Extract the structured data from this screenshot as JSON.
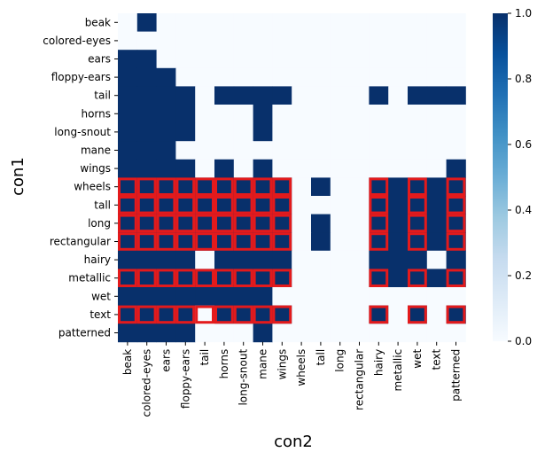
{
  "chart_data": {
    "type": "heatmap",
    "xlabel": "con2",
    "ylabel": "con1",
    "colormap": "Blues",
    "colors": {
      "low": "#f7fbff",
      "high": "#08306b",
      "highlight": "#e31a1c"
    },
    "rows": [
      "beak",
      "colored-eyes",
      "ears",
      "floppy-ears",
      "tail",
      "horns",
      "long-snout",
      "mane",
      "wings",
      "wheels",
      "tall",
      "long",
      "rectangular",
      "hairy",
      "metallic",
      "wet",
      "text",
      "patterned"
    ],
    "columns": [
      "beak",
      "colored-eyes",
      "ears",
      "floppy-ears",
      "tail",
      "horns",
      "long-snout",
      "mane",
      "wings",
      "wheels",
      "tall",
      "long",
      "rectangular",
      "hairy",
      "metallic",
      "wet",
      "text",
      "patterned"
    ],
    "values": [
      [
        0,
        1,
        0,
        0,
        0,
        0,
        0,
        0,
        0,
        0,
        0,
        0,
        0,
        0,
        0,
        0,
        0,
        0
      ],
      [
        0,
        0,
        0,
        0,
        0,
        0,
        0,
        0,
        0,
        0,
        0,
        0,
        0,
        0,
        0,
        0,
        0,
        0
      ],
      [
        1,
        1,
        0,
        0,
        0,
        0,
        0,
        0,
        0,
        0,
        0,
        0,
        0,
        0,
        0,
        0,
        0,
        0
      ],
      [
        1,
        1,
        1,
        0,
        0,
        0,
        0,
        0,
        0,
        0,
        0,
        0,
        0,
        0,
        0,
        0,
        0,
        0
      ],
      [
        1,
        1,
        1,
        1,
        0,
        1,
        1,
        1,
        1,
        0,
        0,
        0,
        0,
        1,
        0,
        1,
        1,
        1
      ],
      [
        1,
        1,
        1,
        1,
        0,
        0,
        0,
        1,
        0,
        0,
        0,
        0,
        0,
        0,
        0,
        0,
        0,
        0
      ],
      [
        1,
        1,
        1,
        1,
        0,
        0,
        0,
        1,
        0,
        0,
        0,
        0,
        0,
        0,
        0,
        0,
        0,
        0
      ],
      [
        1,
        1,
        1,
        0,
        0,
        0,
        0,
        0,
        0,
        0,
        0,
        0,
        0,
        0,
        0,
        0,
        0,
        0
      ],
      [
        1,
        1,
        1,
        1,
        0,
        1,
        0,
        1,
        0,
        0,
        0,
        0,
        0,
        0,
        0,
        0,
        0,
        1
      ],
      [
        1,
        1,
        1,
        1,
        1,
        1,
        1,
        1,
        1,
        0,
        1,
        0,
        0,
        1,
        1,
        1,
        1,
        1
      ],
      [
        1,
        1,
        1,
        1,
        1,
        1,
        1,
        1,
        1,
        0,
        0,
        0,
        0,
        1,
        1,
        1,
        1,
        1
      ],
      [
        1,
        1,
        1,
        1,
        1,
        1,
        1,
        1,
        1,
        0,
        1,
        0,
        0,
        1,
        1,
        1,
        1,
        1
      ],
      [
        1,
        1,
        1,
        1,
        1,
        1,
        1,
        1,
        1,
        0,
        1,
        0,
        0,
        1,
        1,
        1,
        1,
        1
      ],
      [
        1,
        1,
        1,
        1,
        0,
        1,
        1,
        1,
        1,
        0,
        0,
        0,
        0,
        1,
        1,
        1,
        0,
        1
      ],
      [
        1,
        1,
        1,
        1,
        1,
        1,
        1,
        1,
        1,
        0,
        0,
        0,
        0,
        1,
        1,
        1,
        1,
        1
      ],
      [
        1,
        1,
        1,
        1,
        1,
        1,
        1,
        1,
        0,
        0,
        0,
        0,
        0,
        0,
        0,
        0,
        0,
        0
      ],
      [
        1,
        1,
        1,
        1,
        0,
        1,
        1,
        1,
        1,
        0,
        0,
        0,
        0,
        1,
        0,
        1,
        0,
        1
      ],
      [
        1,
        1,
        1,
        1,
        0,
        0,
        0,
        1,
        0,
        0,
        0,
        0,
        0,
        0,
        0,
        0,
        0,
        0
      ]
    ],
    "highlighted_cells": [
      [
        9,
        0
      ],
      [
        9,
        1
      ],
      [
        9,
        2
      ],
      [
        9,
        3
      ],
      [
        9,
        4
      ],
      [
        9,
        5
      ],
      [
        9,
        6
      ],
      [
        9,
        7
      ],
      [
        9,
        8
      ],
      [
        9,
        13
      ],
      [
        9,
        15
      ],
      [
        9,
        17
      ],
      [
        10,
        0
      ],
      [
        10,
        1
      ],
      [
        10,
        2
      ],
      [
        10,
        3
      ],
      [
        10,
        4
      ],
      [
        10,
        5
      ],
      [
        10,
        6
      ],
      [
        10,
        7
      ],
      [
        10,
        8
      ],
      [
        10,
        13
      ],
      [
        10,
        15
      ],
      [
        10,
        17
      ],
      [
        11,
        0
      ],
      [
        11,
        1
      ],
      [
        11,
        2
      ],
      [
        11,
        3
      ],
      [
        11,
        4
      ],
      [
        11,
        5
      ],
      [
        11,
        6
      ],
      [
        11,
        7
      ],
      [
        11,
        8
      ],
      [
        11,
        13
      ],
      [
        11,
        15
      ],
      [
        11,
        17
      ],
      [
        12,
        0
      ],
      [
        12,
        1
      ],
      [
        12,
        2
      ],
      [
        12,
        3
      ],
      [
        12,
        4
      ],
      [
        12,
        5
      ],
      [
        12,
        6
      ],
      [
        12,
        7
      ],
      [
        12,
        8
      ],
      [
        12,
        13
      ],
      [
        12,
        15
      ],
      [
        12,
        17
      ],
      [
        14,
        0
      ],
      [
        14,
        1
      ],
      [
        14,
        2
      ],
      [
        14,
        3
      ],
      [
        14,
        4
      ],
      [
        14,
        5
      ],
      [
        14,
        6
      ],
      [
        14,
        7
      ],
      [
        14,
        8
      ],
      [
        14,
        13
      ],
      [
        14,
        15
      ],
      [
        14,
        17
      ],
      [
        16,
        0
      ],
      [
        16,
        1
      ],
      [
        16,
        2
      ],
      [
        16,
        3
      ],
      [
        16,
        4
      ],
      [
        16,
        5
      ],
      [
        16,
        6
      ],
      [
        16,
        7
      ],
      [
        16,
        8
      ],
      [
        16,
        13
      ],
      [
        16,
        15
      ],
      [
        16,
        17
      ]
    ],
    "colorbar": {
      "range": [
        0,
        1
      ],
      "ticks": [
        0.0,
        0.2,
        0.4,
        0.6,
        0.8,
        1.0
      ],
      "tick_labels": [
        "0.0",
        "0.2",
        "0.4",
        "0.6",
        "0.8",
        "1.0"
      ]
    }
  }
}
